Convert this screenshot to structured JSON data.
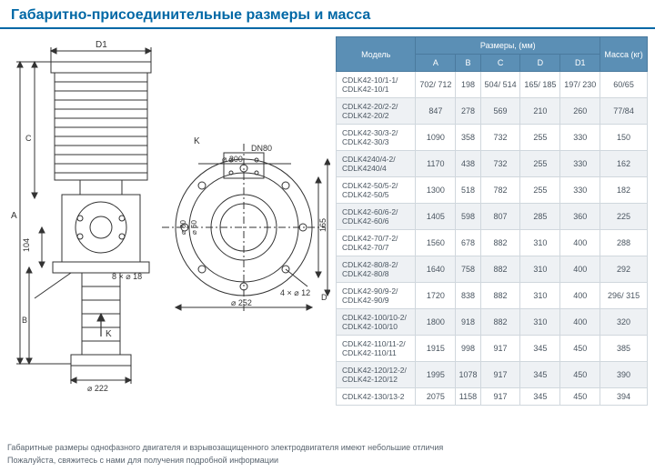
{
  "title": "Габаритно-присоединительные размеры и масса",
  "table": {
    "header_model": "Модель",
    "header_dim": "Размеры, (мм)",
    "header_mass": "Масса (кг)",
    "cols": {
      "A": "A",
      "B": "B",
      "C": "C",
      "D": "D",
      "D1": "D1"
    },
    "rows": [
      {
        "model": "CDLK42-10/1-1/\nCDLK42-10/1",
        "A": "702/ 712",
        "B": "198",
        "C": "504/ 514",
        "D": "165/ 185",
        "D1": "197/ 230",
        "mass": "60/65"
      },
      {
        "model": "CDLK42-20/2-2/\nCDLK42-20/2",
        "A": "847",
        "B": "278",
        "C": "569",
        "D": "210",
        "D1": "260",
        "mass": "77/84"
      },
      {
        "model": "CDLK42-30/3-2/\nCDLK42-30/3",
        "A": "1090",
        "B": "358",
        "C": "732",
        "D": "255",
        "D1": "330",
        "mass": "150"
      },
      {
        "model": "CDLK4240/4-2/\nCDLK4240/4",
        "A": "1170",
        "B": "438",
        "C": "732",
        "D": "255",
        "D1": "330",
        "mass": "162"
      },
      {
        "model": "CDLK42-50/5-2/\nCDLK42-50/5",
        "A": "1300",
        "B": "518",
        "C": "782",
        "D": "255",
        "D1": "330",
        "mass": "182"
      },
      {
        "model": "CDLK42-60/6-2/\nCDLK42-60/6",
        "A": "1405",
        "B": "598",
        "C": "807",
        "D": "285",
        "D1": "360",
        "mass": "225"
      },
      {
        "model": "CDLK42-70/7-2/\nCDLK42-70/7",
        "A": "1560",
        "B": "678",
        "C": "882",
        "D": "310",
        "D1": "400",
        "mass": "288"
      },
      {
        "model": "CDLK42-80/8-2/\nCDLK42-80/8",
        "A": "1640",
        "B": "758",
        "C": "882",
        "D": "310",
        "D1": "400",
        "mass": "292"
      },
      {
        "model": "CDLK42-90/9-2/\nCDLK42-90/9",
        "A": "1720",
        "B": "838",
        "C": "882",
        "D": "310",
        "D1": "400",
        "mass": "296/ 315"
      },
      {
        "model": "CDLK42-100/10-2/\nCDLK42-100/10",
        "A": "1800",
        "B": "918",
        "C": "882",
        "D": "310",
        "D1": "400",
        "mass": "320"
      },
      {
        "model": "CDLK42-110/11-2/\nCDLK42-110/11",
        "A": "1915",
        "B": "998",
        "C": "917",
        "D": "345",
        "D1": "450",
        "mass": "385"
      },
      {
        "model": "CDLK42-120/12-2/\nCDLK42-120/12",
        "A": "1995",
        "B": "1078",
        "C": "917",
        "D": "345",
        "D1": "450",
        "mass": "390"
      },
      {
        "model": "CDLK42-130/13-2",
        "A": "2075",
        "B": "1158",
        "C": "917",
        "D": "345",
        "D1": "450",
        "mass": "394"
      }
    ]
  },
  "diagram_labels": {
    "D1": "D1",
    "K": "K",
    "DN80": "DN80",
    "d200": "⌀ 200",
    "d80": "⌀ 80",
    "d60": "⌀ 60",
    "d222": "⌀ 222",
    "d252": "⌀ 252",
    "l165": "165",
    "l104": "104",
    "A": "A",
    "B": "B",
    "C": "C",
    "D": "D",
    "arrowK": "K",
    "holes8": "8 × ⌀ 18",
    "holes4": "4 × ⌀ 12"
  },
  "footnote1": "Габаритные размеры однофазного двигателя и взрывозащищенного электродвигателя имеют небольшие отличия",
  "footnote2": "Пожалуйста, свяжитесь с нами для получения подробной информации",
  "colors": {
    "title": "#0068a6",
    "header_bg": "#5b8fb5",
    "row_shade": "#eef1f4",
    "border": "#d0d7dd",
    "text": "#4a5560"
  }
}
